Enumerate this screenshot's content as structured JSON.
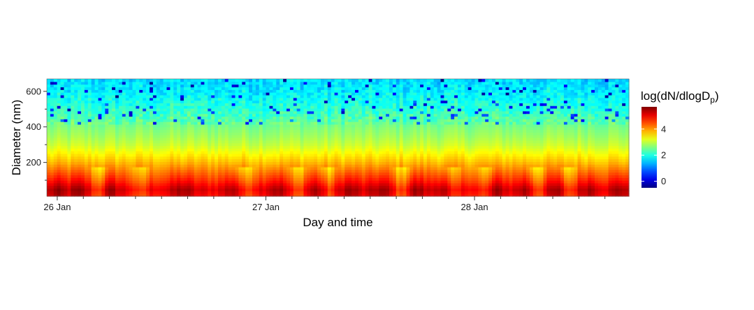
{
  "chart_data": {
    "type": "heatmap",
    "title": "",
    "xlabel": "Day and time",
    "ylabel": "Diameter (nm)",
    "x_ticks": [
      "26 Jan",
      "27 Jan",
      "28 Jan"
    ],
    "x_tick_positions_days": [
      0,
      1,
      2
    ],
    "x_range_days": [
      -0.05,
      2.74
    ],
    "minor_tick_interval_hours": 3,
    "y_ticks": [
      200,
      400,
      600
    ],
    "y_range": [
      10,
      670
    ],
    "grid": false,
    "colorbar": {
      "title_parts": {
        "prefix": "log(dN",
        "slash": "/",
        "mid": "dlogD",
        "sub": "p",
        "suffix": ")"
      },
      "ticks": [
        0,
        2,
        4
      ],
      "range": [
        -0.5,
        5.7
      ],
      "colormap": "jet",
      "placement": "right"
    },
    "profile_by_diameter": {
      "diameter_nm": [
        20,
        50,
        100,
        150,
        200,
        250,
        300,
        350,
        400,
        450,
        500,
        550,
        600,
        670
      ],
      "log_value": [
        4.9,
        5.1,
        4.6,
        4.2,
        3.8,
        3.4,
        3.05,
        2.8,
        2.6,
        2.3,
        2.1,
        1.9,
        1.75,
        1.6
      ]
    },
    "high_events_days": [
      0.0,
      0.1,
      0.25,
      0.6,
      0.85,
      1.05,
      1.25,
      1.4,
      1.55,
      1.72,
      1.85,
      2.1,
      2.25,
      2.4,
      2.55,
      2.7
    ],
    "low_value_events_days": [
      0.2,
      0.4,
      0.9,
      1.15,
      1.3,
      1.65,
      1.9,
      2.05,
      2.3,
      2.45
    ]
  }
}
